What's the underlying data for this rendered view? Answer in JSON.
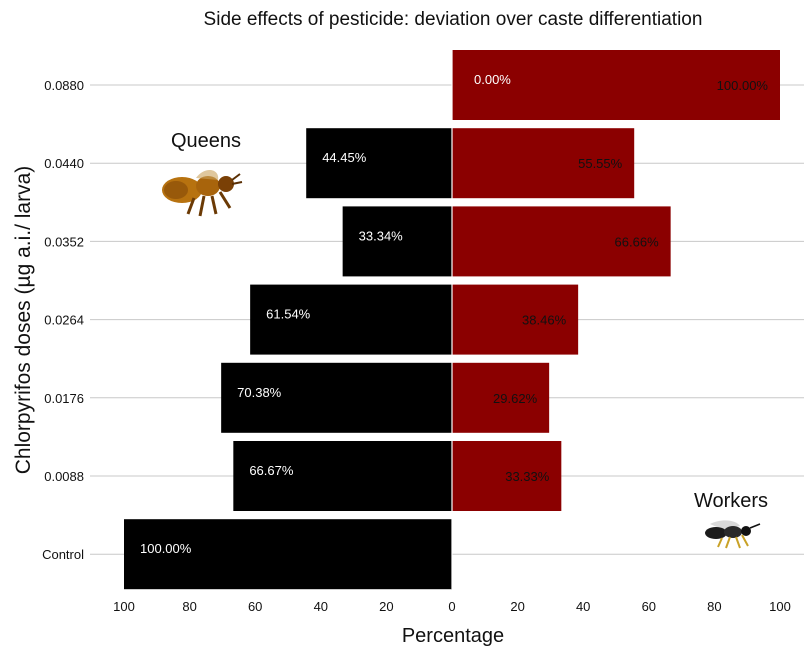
{
  "chart_data": {
    "type": "bar",
    "orientation": "horizontal-diverging",
    "title": "Side effects of pesticide: deviation over caste differentiation",
    "xlabel": "Percentage",
    "ylabel": "Chlorpyrifos doses (µg a.i./ larva)",
    "categories": [
      "0.0880",
      "0.0440",
      "0.0352",
      "0.0264",
      "0.0176",
      "0.0088",
      "Control"
    ],
    "xticks": [
      "100",
      "80",
      "60",
      "40",
      "20",
      "0",
      "20",
      "40",
      "60",
      "80",
      "100"
    ],
    "xlim": [
      -100,
      100
    ],
    "grid": "horizontal",
    "series": [
      {
        "name": "Queens",
        "color": "#000000",
        "label_color": "#ffffff",
        "values": [
          0,
          44.45,
          33.34,
          61.54,
          70.38,
          66.67,
          100
        ],
        "labels": [
          "0.00%",
          "44.45%",
          "33.34%",
          "61.54%",
          "70.38%",
          "66.67%",
          "100.00%"
        ]
      },
      {
        "name": "Workers",
        "color": "#8b0000",
        "label_color": "#111111",
        "values": [
          100,
          55.55,
          66.66,
          38.46,
          29.62,
          33.33,
          0
        ],
        "labels": [
          "100.00%",
          "55.55%",
          "66.66%",
          "38.46%",
          "29.62%",
          "33.33%",
          ""
        ]
      }
    ],
    "annotations": [
      {
        "text": "Queens",
        "icon": "queen-bee-icon"
      },
      {
        "text": "Workers",
        "icon": "worker-bee-icon"
      }
    ]
  }
}
